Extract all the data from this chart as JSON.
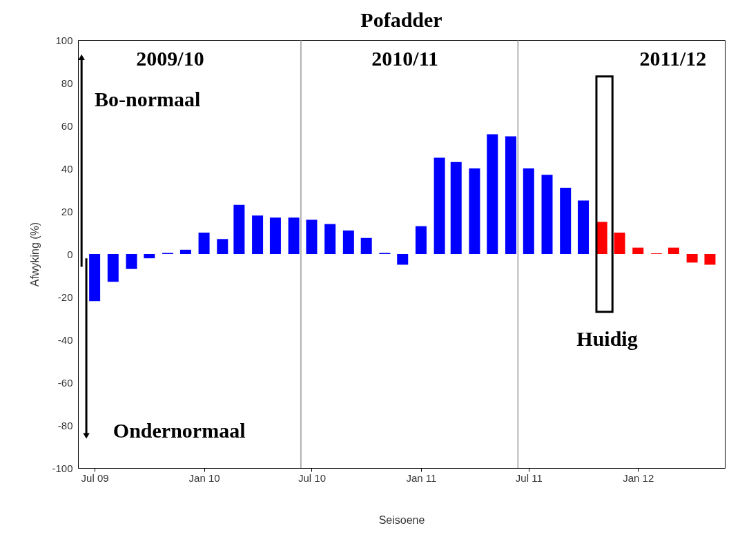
{
  "chart_data": {
    "type": "bar",
    "title": "Pofadder",
    "xlabel": "Seisoene",
    "ylabel": "Afwyking (%)",
    "x": [
      "2009-07",
      "2009-08",
      "2009-09",
      "2009-10",
      "2009-11",
      "2009-12",
      "2010-01",
      "2010-02",
      "2010-03",
      "2010-04",
      "2010-05",
      "2010-06",
      "2010-07",
      "2010-08",
      "2010-09",
      "2010-10",
      "2010-11",
      "2010-12",
      "2011-01",
      "2011-02",
      "2011-03",
      "2011-04",
      "2011-05",
      "2011-06",
      "2011-07",
      "2011-08",
      "2011-09",
      "2011-10",
      "2011-11",
      "2011-12",
      "2012-01",
      "2012-02",
      "2012-03",
      "2012-04",
      "2012-05"
    ],
    "series": [
      {
        "color": "#0000ff",
        "values": [
          -22,
          -13,
          -7,
          -2,
          0.5,
          2,
          10,
          7,
          23,
          18,
          17,
          17,
          16,
          14,
          11,
          7.5,
          0.5,
          -5,
          13,
          45,
          43,
          40,
          56,
          55,
          40,
          37,
          31,
          25,
          null,
          null,
          null,
          null,
          null,
          null,
          null
        ]
      },
      {
        "color": "#ff0000",
        "values": [
          null,
          null,
          null,
          null,
          null,
          null,
          null,
          null,
          null,
          null,
          null,
          null,
          null,
          null,
          null,
          null,
          null,
          null,
          null,
          null,
          null,
          null,
          null,
          null,
          null,
          null,
          null,
          null,
          15,
          10,
          3,
          0.3,
          3,
          -4,
          -5
        ]
      }
    ],
    "xlim": [
      "2009-06-03",
      "2012-05-26"
    ],
    "xticks": [
      {
        "value": "2009-07",
        "label": "Jul 09"
      },
      {
        "value": "2010-01",
        "label": "Jan 10"
      },
      {
        "value": "2010-07",
        "label": "Jul 10"
      },
      {
        "value": "2011-01",
        "label": "Jan 11"
      },
      {
        "value": "2011-07",
        "label": "Jul 11"
      },
      {
        "value": "2012-01",
        "label": "Jan 12"
      }
    ],
    "ylim": [
      -100,
      100
    ],
    "yticks": [
      -100,
      -80,
      -60,
      -40,
      -20,
      0,
      20,
      40,
      60,
      80,
      100
    ],
    "ref_lines": [
      {
        "axis": "x",
        "value": "2010-06-13",
        "color": "#808080"
      },
      {
        "axis": "x",
        "value": "2011-06-13",
        "color": "#808080"
      }
    ],
    "annotations": [
      "2009/10",
      "2010/11",
      "2011/12",
      {
        "text": "Bo-normaal",
        "x": "2009-06-09",
        "y": 92
      },
      {
        "text": "Ondernormaal",
        "x": "2009-06-17",
        "y": -85
      },
      "Huidig"
    ],
    "grid": false
  }
}
